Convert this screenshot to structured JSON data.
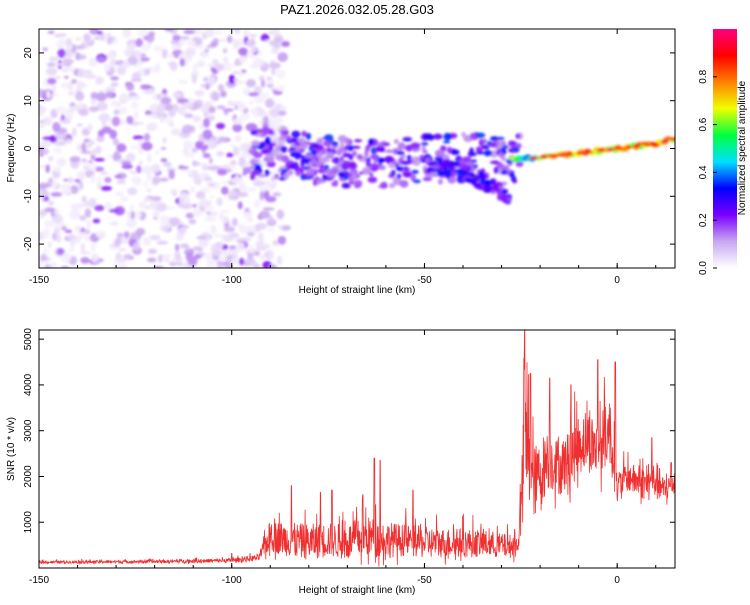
{
  "title": "PAZ1.2026.032.05.28.G03",
  "chart_data": [
    {
      "type": "heatmap",
      "title": "PAZ1.2026.032.05.28.G03",
      "xlabel": "Height of straight line (km)",
      "ylabel": "Frequency (Hz)",
      "xlim": [
        -150,
        15
      ],
      "ylim": [
        -25,
        25
      ],
      "x_ticks": [
        "-150",
        "-100",
        "-50",
        "0"
      ],
      "x_tick_values": [
        -150,
        -100,
        -50,
        0
      ],
      "y_ticks": [
        "-20",
        "-10",
        "0",
        "10",
        "20"
      ],
      "y_tick_values": [
        -20,
        -10,
        0,
        10,
        20
      ],
      "colorbar": {
        "label": "Normalized spectral amplitude",
        "range": [
          0,
          1
        ],
        "ticks": [
          "0.0",
          "0.2",
          "0.4",
          "0.6",
          "0.8"
        ],
        "tick_values": [
          0,
          0.2,
          0.4,
          0.6,
          0.8
        ],
        "colors": [
          "#ffffff",
          "#c8a8f0",
          "#7a00ff",
          "#0000ff",
          "#00e0ff",
          "#00ff40",
          "#f0ff00",
          "#ff8000",
          "#ff0000",
          "#ff0080"
        ]
      },
      "ridge": {
        "description": "frequency of dominant signal vs height",
        "x": [
          -92,
          -80,
          -70,
          -60,
          -50,
          -40,
          -30,
          -22,
          -10,
          0,
          10,
          15
        ],
        "y": [
          -1,
          -2,
          -3,
          -3,
          -2,
          -2,
          -2.5,
          -2,
          -1,
          0,
          1,
          2
        ]
      },
      "noise_region": {
        "x_range": [
          -150,
          -92
        ],
        "y_range": [
          -25,
          25
        ],
        "amplitude_range": [
          0.02,
          0.15
        ]
      },
      "branch": {
        "x": [
          -50,
          -45,
          -40,
          -35,
          -30,
          -28
        ],
        "y": [
          -3,
          -4,
          -5,
          -7,
          -9,
          -11
        ]
      }
    },
    {
      "type": "line",
      "xlabel": "Height of straight line (km)",
      "ylabel": "SNR (10 * v/v)",
      "xlim": [
        -150,
        15
      ],
      "ylim": [
        0,
        5200
      ],
      "x_ticks": [
        "-150",
        "-100",
        "-50",
        "0"
      ],
      "x_tick_values": [
        -150,
        -100,
        -50,
        0
      ],
      "y_ticks": [
        "1000",
        "2000",
        "3000",
        "4000",
        "5000"
      ],
      "y_tick_values": [
        1000,
        2000,
        3000,
        4000,
        5000
      ],
      "color": "#f03030",
      "envelope": {
        "x": [
          -150,
          -120,
          -100,
          -93,
          -90,
          -85,
          -80,
          -75,
          -70,
          -65,
          -60,
          -55,
          -50,
          -45,
          -40,
          -35,
          -30,
          -26,
          -25,
          -24,
          -22,
          -20,
          -18,
          -15,
          -12,
          -10,
          -8,
          -5,
          -2,
          0,
          2,
          5,
          8,
          10,
          12,
          15
        ],
        "base": [
          120,
          130,
          150,
          200,
          600,
          500,
          450,
          500,
          450,
          550,
          500,
          500,
          450,
          450,
          450,
          450,
          400,
          400,
          1000,
          2500,
          1600,
          1800,
          2200,
          2000,
          2200,
          2500,
          2600,
          2400,
          2800,
          1600,
          1900,
          1800,
          1700,
          1800,
          1600,
          1800
        ],
        "amp": [
          60,
          70,
          90,
          150,
          700,
          750,
          800,
          750,
          800,
          900,
          800,
          700,
          700,
          650,
          650,
          600,
          550,
          500,
          1200,
          2600,
          1600,
          1500,
          1400,
          1200,
          1300,
          1300,
          1400,
          1300,
          1500,
          700,
          600,
          700,
          700,
          900,
          600,
          600
        ]
      },
      "peaks": [
        {
          "x": -100,
          "y": 320
        },
        {
          "x": -84.5,
          "y": 1800
        },
        {
          "x": -77,
          "y": 1650
        },
        {
          "x": -74,
          "y": 1700
        },
        {
          "x": -66,
          "y": 1600
        },
        {
          "x": -63,
          "y": 2400
        },
        {
          "x": -61.5,
          "y": 2350
        },
        {
          "x": -53,
          "y": 1700
        },
        {
          "x": -24,
          "y": 5200
        },
        {
          "x": -22.5,
          "y": 4250
        },
        {
          "x": -17.5,
          "y": 4150
        },
        {
          "x": -12,
          "y": 4000
        },
        {
          "x": -5,
          "y": 4550
        },
        {
          "x": -0.5,
          "y": 4500
        },
        {
          "x": 2,
          "y": 2200
        },
        {
          "x": 9,
          "y": 2850
        },
        {
          "x": 14,
          "y": 2300
        }
      ]
    }
  ]
}
